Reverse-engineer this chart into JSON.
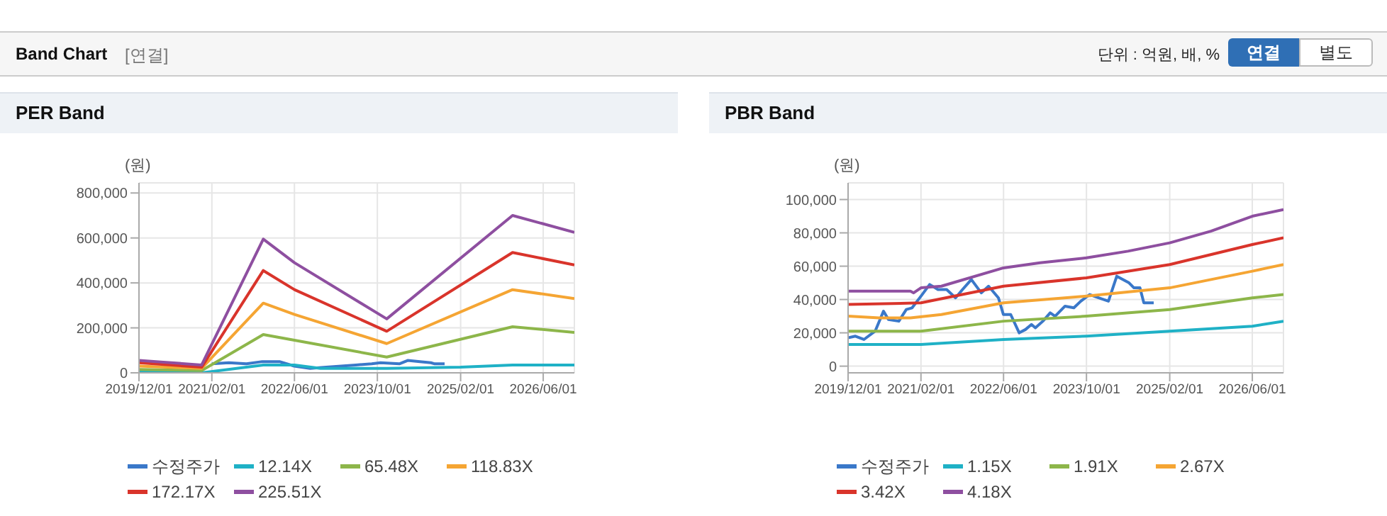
{
  "chart_data": [
    {
      "type": "line",
      "title": "PER Band",
      "ylabel": "(원)",
      "annotations": [
        "Band Chart",
        "[연결]",
        "단위 : 억원, 배, %",
        "연결",
        "별도"
      ],
      "xlim": [
        "2019-12-01",
        "2026-12-01"
      ],
      "xticks": [
        {
          "value": "2019-12-01",
          "label": "2019/12/01"
        },
        {
          "value": "2021-02-01",
          "label": "2021/02/01"
        },
        {
          "value": "2022-06-01",
          "label": "2022/06/01"
        },
        {
          "value": "2023-10-01",
          "label": "2023/10/01"
        },
        {
          "value": "2025-02-01",
          "label": "2025/02/01"
        },
        {
          "value": "2026-06-01",
          "label": "2026/06/01"
        }
      ],
      "ylim": [
        0,
        845000
      ],
      "yticks": [
        {
          "value": 0,
          "label": "0"
        },
        {
          "value": 200000,
          "label": "200,000"
        },
        {
          "value": 400000,
          "label": "400,000"
        },
        {
          "value": 600000,
          "label": "600,000"
        },
        {
          "value": 800000,
          "label": "800,000"
        }
      ],
      "grid": true,
      "legend": "bottom",
      "marker": "none",
      "line_style": "solid",
      "series": [
        {
          "name": "수정주가",
          "color": "#3a78c9",
          "x": [
            "2021-02-01",
            "2021-05-12",
            "2021-08-23",
            "2021-11-24",
            "2022-03-05",
            "2022-05-31",
            "2022-09-01",
            "2022-12-05",
            "2023-03-02",
            "2023-05-28",
            "2023-08-29",
            "2023-10-20",
            "2024-02-07",
            "2024-03-27",
            "2024-06-07",
            "2024-08-10",
            "2024-09-02",
            "2024-10-30"
          ],
          "values": [
            40000,
            45000,
            40000,
            50000,
            50000,
            30000,
            20000,
            25000,
            30000,
            35000,
            40000,
            45000,
            40000,
            55000,
            50000,
            45000,
            40000,
            40000
          ]
        },
        {
          "name": "12.14X",
          "color": "#1fb1c6",
          "x": [
            "2019-12-01",
            "2020-12-03",
            "2021-11-30",
            "2022-06-01",
            "2022-11-01",
            "2023-11-25",
            "2025-02-01",
            "2025-12-03",
            "2026-12-01"
          ],
          "values": [
            5000,
            0,
            35000,
            35000,
            20000,
            20000,
            25000,
            35000,
            35000
          ]
        },
        {
          "name": "65.48X",
          "color": "#8db64a",
          "x": [
            "2019-12-01",
            "2020-12-03",
            "2021-11-30",
            "2022-06-01",
            "2023-11-25",
            "2025-12-03",
            "2026-12-01"
          ],
          "values": [
            15000,
            10000,
            170000,
            145000,
            70000,
            205000,
            180000
          ]
        },
        {
          "name": "118.83X",
          "color": "#f5a533",
          "x": [
            "2019-12-01",
            "2020-12-03",
            "2021-11-30",
            "2022-06-01",
            "2023-11-25",
            "2025-12-03",
            "2026-12-01"
          ],
          "values": [
            30000,
            20000,
            310000,
            260000,
            130000,
            370000,
            330000
          ]
        },
        {
          "name": "172.17X",
          "color": "#d9342b",
          "x": [
            "2019-12-01",
            "2020-12-03",
            "2021-11-30",
            "2022-06-01",
            "2023-11-25",
            "2025-12-03",
            "2026-12-01"
          ],
          "values": [
            45000,
            25000,
            455000,
            370000,
            185000,
            535000,
            480000
          ]
        },
        {
          "name": "225.51X",
          "color": "#8e4fa0",
          "x": [
            "2019-12-01",
            "2020-12-03",
            "2021-11-30",
            "2022-06-01",
            "2023-11-25",
            "2025-12-03",
            "2026-12-01"
          ],
          "values": [
            55000,
            35000,
            595000,
            490000,
            240000,
            700000,
            625000
          ]
        }
      ]
    },
    {
      "type": "line",
      "title": "PBR Band",
      "ylabel": "(원)",
      "xlim": [
        "2019-12-01",
        "2026-12-01"
      ],
      "xticks": [
        {
          "value": "2019-12-01",
          "label": "2019/12/01"
        },
        {
          "value": "2021-02-01",
          "label": "2021/02/01"
        },
        {
          "value": "2022-06-01",
          "label": "2022/06/01"
        },
        {
          "value": "2023-10-01",
          "label": "2023/10/01"
        },
        {
          "value": "2025-02-01",
          "label": "2025/02/01"
        },
        {
          "value": "2026-06-01",
          "label": "2026/06/01"
        }
      ],
      "ylim": [
        -4000,
        110000
      ],
      "yticks": [
        {
          "value": 0,
          "label": "0"
        },
        {
          "value": 20000,
          "label": "20,000"
        },
        {
          "value": 40000,
          "label": "40,000"
        },
        {
          "value": 60000,
          "label": "60,000"
        },
        {
          "value": 80000,
          "label": "80,000"
        },
        {
          "value": 100000,
          "label": "100,000"
        }
      ],
      "grid": true,
      "legend": "bottom",
      "marker": "none",
      "line_style": "solid",
      "series": [
        {
          "name": "수정주가",
          "color": "#3a78c9",
          "x": [
            "2019-12-01",
            "2020-01-13",
            "2020-03-03",
            "2020-05-08",
            "2020-06-26",
            "2020-07-25",
            "2020-09-24",
            "2020-11-07",
            "2020-12-11",
            "2021-02-01",
            "2021-03-24",
            "2021-05-12",
            "2021-07-02",
            "2021-08-23",
            "2021-10-03",
            "2021-11-24",
            "2022-01-21",
            "2022-03-05",
            "2022-05-02",
            "2022-05-31",
            "2022-07-13",
            "2022-09-01",
            "2022-10-08",
            "2022-11-12",
            "2022-12-05",
            "2023-01-18",
            "2023-03-02",
            "2023-03-31",
            "2023-05-28",
            "2023-07-19",
            "2023-08-29",
            "2023-10-20",
            "2023-12-11",
            "2024-02-07",
            "2024-03-27",
            "2024-06-07",
            "2024-07-06",
            "2024-08-10",
            "2024-09-02",
            "2024-10-30"
          ],
          "values": [
            17000,
            18000,
            16000,
            21000,
            33000,
            28000,
            27000,
            34000,
            35000,
            42000,
            49000,
            46000,
            46000,
            41000,
            46000,
            52000,
            44000,
            48000,
            41000,
            31000,
            31000,
            20000,
            22000,
            25000,
            23000,
            27000,
            32000,
            30000,
            36000,
            35000,
            39000,
            43000,
            41000,
            39000,
            54000,
            50000,
            47000,
            47000,
            38000,
            38000
          ]
        },
        {
          "name": "1.15X",
          "color": "#1fb1c6",
          "x": [
            "2019-12-01",
            "2021-02-01",
            "2022-06-01",
            "2023-10-01",
            "2025-02-01",
            "2026-06-01",
            "2026-12-01"
          ],
          "values": [
            13000,
            13000,
            16000,
            18000,
            21000,
            24000,
            27000
          ]
        },
        {
          "name": "1.91X",
          "color": "#8db64a",
          "x": [
            "2019-12-01",
            "2021-02-01",
            "2022-06-01",
            "2023-10-01",
            "2025-02-01",
            "2026-06-01",
            "2026-12-01"
          ],
          "values": [
            21000,
            21000,
            27000,
            30000,
            34000,
            41000,
            43000
          ]
        },
        {
          "name": "2.67X",
          "color": "#f5a533",
          "x": [
            "2019-12-01",
            "2020-06-01",
            "2020-12-01",
            "2021-06-01",
            "2022-06-01",
            "2023-10-01",
            "2025-02-01",
            "2026-06-01",
            "2026-12-01"
          ],
          "values": [
            30000,
            29000,
            29000,
            31000,
            38000,
            42000,
            47000,
            57000,
            61000
          ]
        },
        {
          "name": "3.42X",
          "color": "#d9342b",
          "x": [
            "2019-12-01",
            "2021-02-01",
            "2022-06-01",
            "2023-10-01",
            "2025-02-01",
            "2026-06-01",
            "2026-12-01"
          ],
          "values": [
            37000,
            38000,
            48000,
            53000,
            61000,
            73000,
            77000
          ]
        },
        {
          "name": "4.18X",
          "color": "#8e4fa0",
          "x": [
            "2019-12-01",
            "2020-12-01",
            "2020-12-20",
            "2021-02-01",
            "2021-06-01",
            "2022-06-01",
            "2023-01-01",
            "2023-10-01",
            "2024-06-01",
            "2025-02-01",
            "2025-10-01",
            "2026-06-01",
            "2026-12-01"
          ],
          "values": [
            45000,
            45000,
            44000,
            47000,
            48000,
            59000,
            62000,
            65000,
            69000,
            74000,
            81000,
            90000,
            94000
          ]
        }
      ]
    }
  ]
}
